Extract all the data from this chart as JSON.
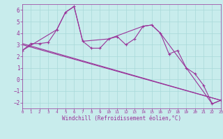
{
  "bg_color": "#c8ecec",
  "grid_color": "#a8d8d8",
  "line_color": "#993399",
  "xlabel": "Windchill (Refroidissement éolien,°C)",
  "xlim": [
    0,
    23
  ],
  "ylim": [
    -2.5,
    6.5
  ],
  "yticks": [
    -2,
    -1,
    0,
    1,
    2,
    3,
    4,
    5,
    6
  ],
  "xticks": [
    0,
    1,
    2,
    3,
    4,
    5,
    6,
    7,
    8,
    9,
    10,
    11,
    12,
    13,
    14,
    15,
    16,
    17,
    18,
    19,
    20,
    21,
    22,
    23
  ],
  "line1_x": [
    0,
    1,
    2,
    3,
    4,
    5,
    6,
    7,
    8,
    9,
    10,
    11,
    12,
    13,
    14,
    15,
    16,
    17,
    18,
    19,
    20,
    21,
    22,
    23
  ],
  "line1_y": [
    2.5,
    3.1,
    3.1,
    3.2,
    4.3,
    5.8,
    6.3,
    3.3,
    2.7,
    2.7,
    3.5,
    3.7,
    3.0,
    3.5,
    4.6,
    4.7,
    4.0,
    2.2,
    2.5,
    1.0,
    0.5,
    -0.5,
    -2.1,
    -1.8
  ],
  "line2_x": [
    0,
    4,
    5,
    6,
    7,
    10,
    14,
    15,
    16,
    19,
    22,
    23
  ],
  "line2_y": [
    2.5,
    4.3,
    5.8,
    6.3,
    3.3,
    3.5,
    4.6,
    4.7,
    4.0,
    1.0,
    -2.1,
    -1.8
  ],
  "line3_x": [
    0,
    23
  ],
  "line3_y": [
    3.1,
    -1.8
  ],
  "line4_x": [
    0,
    23
  ],
  "line4_y": [
    3.0,
    -1.8
  ]
}
